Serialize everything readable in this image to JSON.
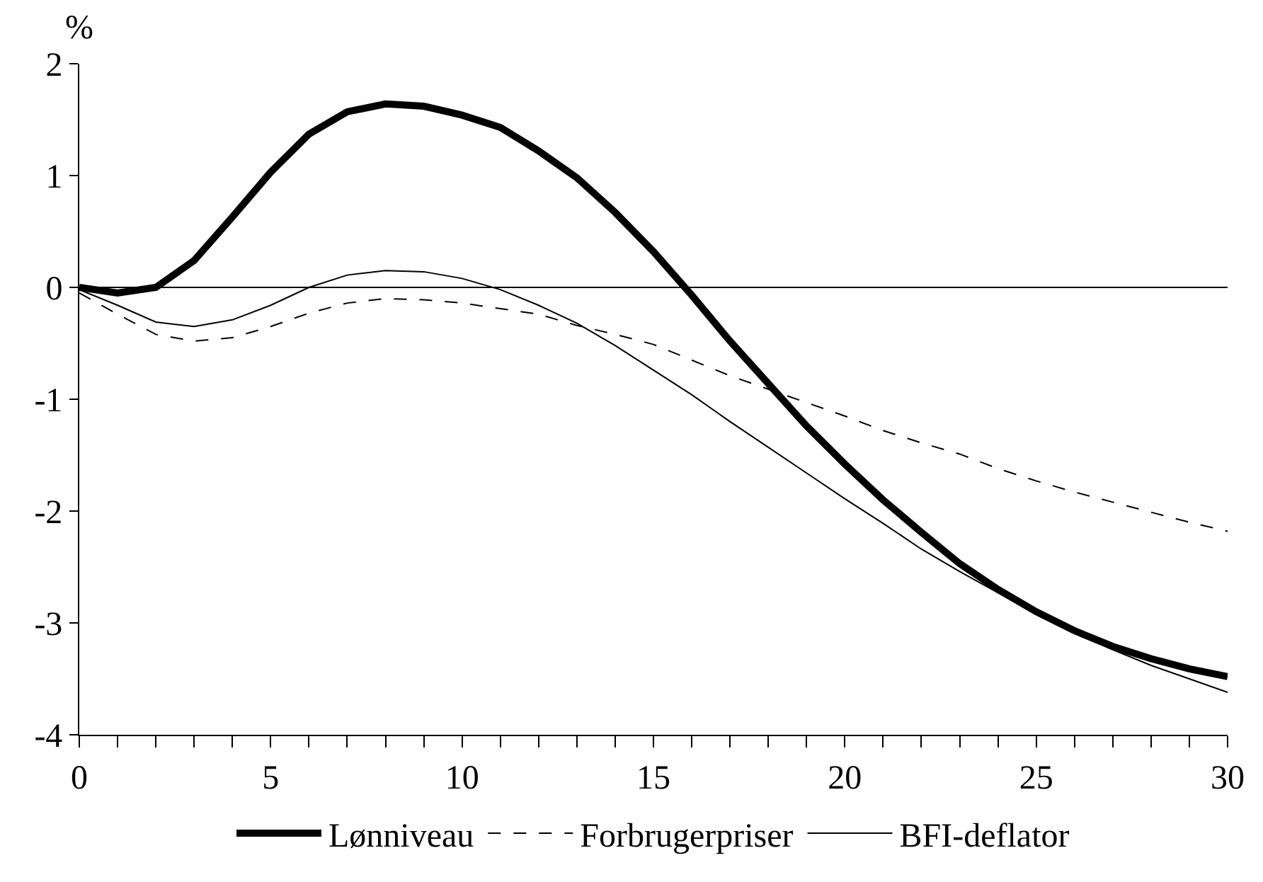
{
  "chart_data": {
    "type": "line",
    "ylabel": "%",
    "x": [
      0,
      1,
      2,
      3,
      4,
      5,
      6,
      7,
      8,
      9,
      10,
      11,
      12,
      13,
      14,
      15,
      16,
      17,
      18,
      19,
      20,
      21,
      22,
      23,
      24,
      25,
      26,
      27,
      28,
      29,
      30
    ],
    "series": [
      {
        "name": "Lønniveau",
        "color": "#000000",
        "line_style": "solid",
        "values": [
          0.0,
          -0.05,
          0.0,
          0.24,
          0.63,
          1.03,
          1.37,
          1.57,
          1.64,
          1.62,
          1.54,
          1.43,
          1.22,
          0.98,
          0.67,
          0.32,
          -0.07,
          -0.48,
          -0.86,
          -1.24,
          -1.58,
          -1.9,
          -2.19,
          -2.47,
          -2.7,
          -2.9,
          -3.07,
          -3.21,
          -3.32,
          -3.41,
          -3.48
        ]
      },
      {
        "name": "Forbrugerpriser",
        "color": "#000000",
        "line_style": "dashed",
        "values": [
          -0.05,
          -0.24,
          -0.42,
          -0.48,
          -0.45,
          -0.35,
          -0.23,
          -0.14,
          -0.1,
          -0.11,
          -0.14,
          -0.19,
          -0.24,
          -0.34,
          -0.42,
          -0.51,
          -0.65,
          -0.79,
          -0.91,
          -1.03,
          -1.15,
          -1.28,
          -1.39,
          -1.49,
          -1.62,
          -1.73,
          -1.83,
          -1.92,
          -2.01,
          -2.1,
          -2.18
        ]
      },
      {
        "name": "BFI-deflator",
        "color": "#000000",
        "line_style": "solid",
        "values": [
          -0.02,
          -0.16,
          -0.31,
          -0.35,
          -0.29,
          -0.16,
          0.0,
          0.11,
          0.15,
          0.14,
          0.08,
          -0.02,
          -0.16,
          -0.32,
          -0.52,
          -0.74,
          -0.96,
          -1.2,
          -1.43,
          -1.66,
          -1.89,
          -2.11,
          -2.34,
          -2.54,
          -2.73,
          -2.92,
          -3.09,
          -3.24,
          -3.38,
          -3.5,
          -3.62
        ]
      }
    ],
    "xlim": [
      0,
      30
    ],
    "xticks": [
      0,
      {
        "value": 1,
        "label": null
      },
      {
        "value": 2,
        "label": null
      },
      {
        "value": 3,
        "label": null
      },
      {
        "value": 4,
        "label": null
      },
      5,
      {
        "value": 6,
        "label": null
      },
      {
        "value": 7,
        "label": null
      },
      {
        "value": 8,
        "label": null
      },
      {
        "value": 9,
        "label": null
      },
      10,
      {
        "value": 11,
        "label": null
      },
      {
        "value": 12,
        "label": null
      },
      {
        "value": 13,
        "label": null
      },
      {
        "value": 14,
        "label": null
      },
      15,
      {
        "value": 16,
        "label": null
      },
      {
        "value": 17,
        "label": null
      },
      {
        "value": 18,
        "label": null
      },
      {
        "value": 19,
        "label": null
      },
      20,
      {
        "value": 21,
        "label": null
      },
      {
        "value": 22,
        "label": null
      },
      {
        "value": 23,
        "label": null
      },
      {
        "value": 24,
        "label": null
      },
      25,
      {
        "value": 26,
        "label": null
      },
      {
        "value": 27,
        "label": null
      },
      {
        "value": 28,
        "label": null
      },
      {
        "value": 29,
        "label": null
      },
      30
    ],
    "ylim": [
      -4,
      2
    ],
    "yticks": [
      -4,
      -3,
      -2,
      -1,
      0,
      1,
      2
    ],
    "ref_lines": [
      {
        "axis": "y",
        "value": 0,
        "color": "#000000"
      }
    ],
    "grid": false,
    "legend": "bottom",
    "marker": "none"
  }
}
